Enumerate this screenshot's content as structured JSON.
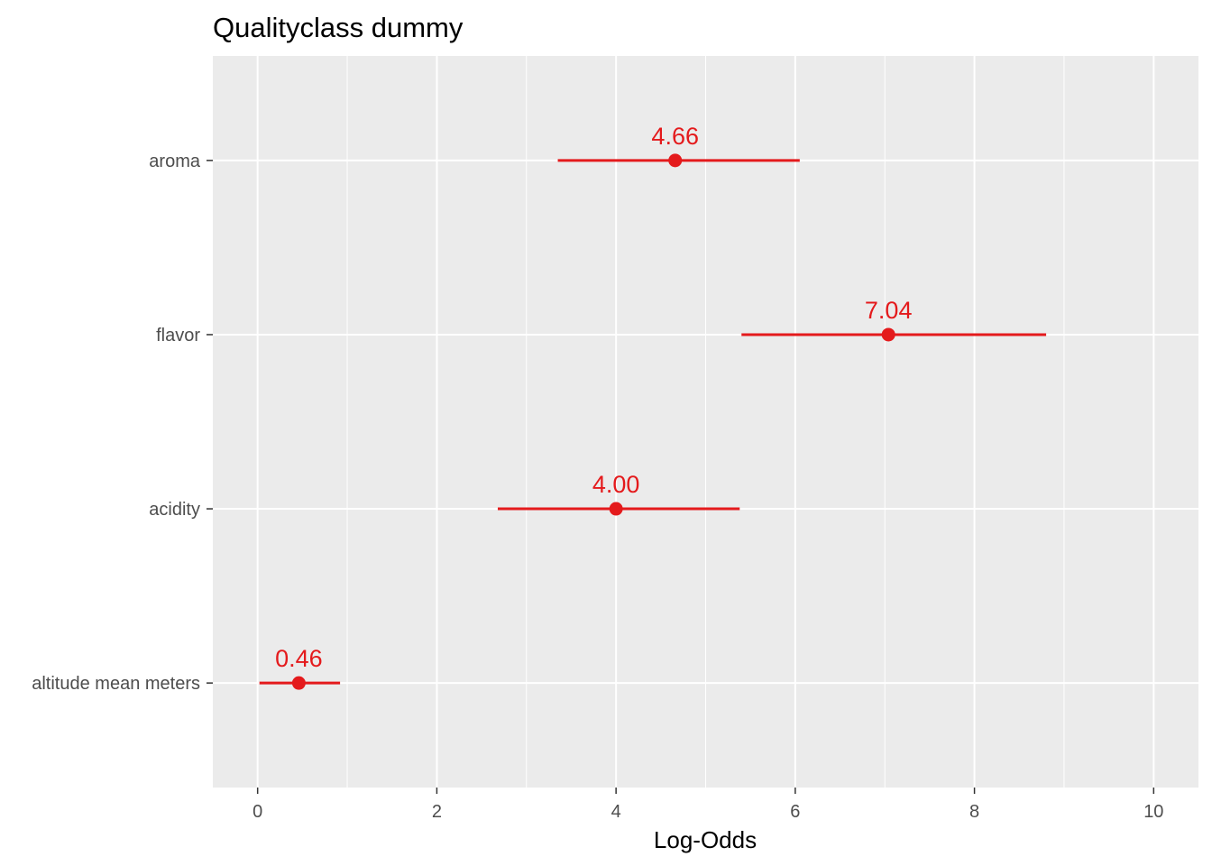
{
  "chart_data": {
    "type": "forest",
    "title": "Qualityclass dummy",
    "xlabel": "Log-Odds",
    "ylabel": "",
    "xlim": [
      -0.5,
      10.5
    ],
    "x_ticks": [
      0,
      2,
      4,
      6,
      8,
      10
    ],
    "x_tick_labels": [
      "0",
      "2",
      "4",
      "6",
      "8",
      "10"
    ],
    "x_minor_ticks": [
      1,
      3,
      5,
      7,
      9
    ],
    "grid": true,
    "legend": "none",
    "point_color": "#e41a1c",
    "panel_background": "#ebebeb",
    "gridline_color": "#ffffff",
    "terms": [
      {
        "term": "aroma",
        "estimate": 4.66,
        "label": "4.66",
        "conf_low": 3.35,
        "conf_high": 6.05
      },
      {
        "term": "flavor",
        "estimate": 7.04,
        "label": "7.04",
        "conf_low": 5.4,
        "conf_high": 8.8
      },
      {
        "term": "acidity",
        "estimate": 4.0,
        "label": "4.00",
        "conf_low": 2.68,
        "conf_high": 5.38
      },
      {
        "term": "altitude mean meters",
        "estimate": 0.46,
        "label": "0.46",
        "conf_low": 0.02,
        "conf_high": 0.92
      }
    ]
  }
}
